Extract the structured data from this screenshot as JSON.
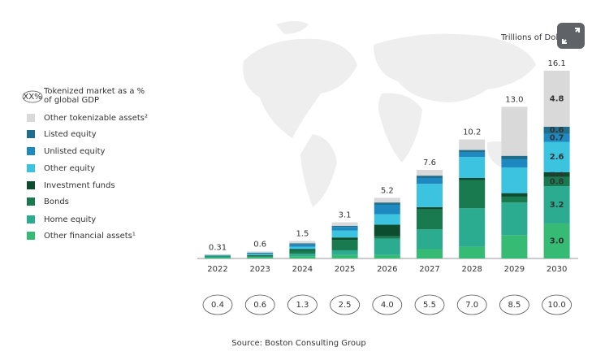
{
  "chart_data": {
    "type": "stacked-bar",
    "unit_label": "Trillions of Dollars",
    "source": "Source: Boston Consulting Group",
    "categories": [
      "2022",
      "2023",
      "2024",
      "2025",
      "2026",
      "2027",
      "2028",
      "2029",
      "2030"
    ],
    "series": [
      {
        "name": "Other financial assets¹",
        "color": "#35bb73",
        "values": [
          0.07,
          0.1,
          0.2,
          0.3,
          0.3,
          0.8,
          1.0,
          2.0,
          3.0
        ],
        "value_labels": [
          null,
          null,
          null,
          null,
          null,
          null,
          null,
          null,
          "3.0"
        ]
      },
      {
        "name": "Home equity",
        "color": "#2bab8f",
        "values": [
          0.1,
          0.05,
          0.2,
          0.4,
          1.4,
          1.7,
          3.3,
          2.8,
          3.2
        ],
        "value_labels": [
          null,
          null,
          null,
          null,
          null,
          null,
          null,
          null,
          "3.2"
        ]
      },
      {
        "name": "Bonds",
        "color": "#197a50",
        "values": [
          0.05,
          0.1,
          0.3,
          0.9,
          0.2,
          1.7,
          2.4,
          0.5,
          0.8
        ],
        "value_labels": [
          null,
          null,
          null,
          null,
          null,
          null,
          null,
          null,
          "0.8"
        ]
      },
      {
        "name": "Investment funds",
        "color": "#0b4d2e",
        "values": [
          0.02,
          0.05,
          0.1,
          0.2,
          1.0,
          0.2,
          0.2,
          0.3,
          0.4
        ],
        "value_labels": [
          null,
          null,
          null,
          null,
          null,
          null,
          null,
          null,
          "0.4"
        ]
      },
      {
        "name": "Other equity",
        "color": "#3cc3e0",
        "values": [
          0.03,
          0.1,
          0.2,
          0.6,
          0.9,
          2.0,
          1.8,
          2.2,
          2.6
        ],
        "value_labels": [
          null,
          null,
          null,
          null,
          null,
          null,
          null,
          null,
          "2.6"
        ]
      },
      {
        "name": "Unlisted equity",
        "color": "#1e88c0",
        "values": [
          0.02,
          0.05,
          0.2,
          0.3,
          0.8,
          0.5,
          0.4,
          0.7,
          0.7
        ],
        "value_labels": [
          null,
          null,
          null,
          null,
          null,
          null,
          null,
          null,
          "0.7"
        ]
      },
      {
        "name": "Listed equity",
        "color": "#1f6e8c",
        "values": [
          0.02,
          0.05,
          0.1,
          0.1,
          0.2,
          0.2,
          0.2,
          0.3,
          0.6
        ],
        "value_labels": [
          null,
          null,
          null,
          null,
          null,
          null,
          null,
          null,
          "0.6"
        ]
      },
      {
        "name": "Other tokenizable assets²",
        "color": "#d9d9d9",
        "values": [
          0,
          0.1,
          0.2,
          0.3,
          0.4,
          0.5,
          0.9,
          4.2,
          4.8
        ],
        "value_labels": [
          null,
          null,
          null,
          null,
          null,
          null,
          null,
          null,
          "4.8"
        ]
      }
    ],
    "totals": [
      0.31,
      0.6,
      1.5,
      3.1,
      5.2,
      7.6,
      10.2,
      13,
      16.1
    ],
    "total_labels": [
      "0.31",
      "0.6",
      "1.5",
      "3.1",
      "5.2",
      "7.6",
      "10.2",
      "13.0",
      "16.1"
    ],
    "gdp_share": {
      "badge": "XX%",
      "name": "Tokenized market as a % of global GDP",
      "labels": [
        "0.4",
        "0.6",
        "1.3",
        "2.5",
        "4.0",
        "5.5",
        "7.0",
        "8.5",
        "10.0"
      ]
    }
  }
}
